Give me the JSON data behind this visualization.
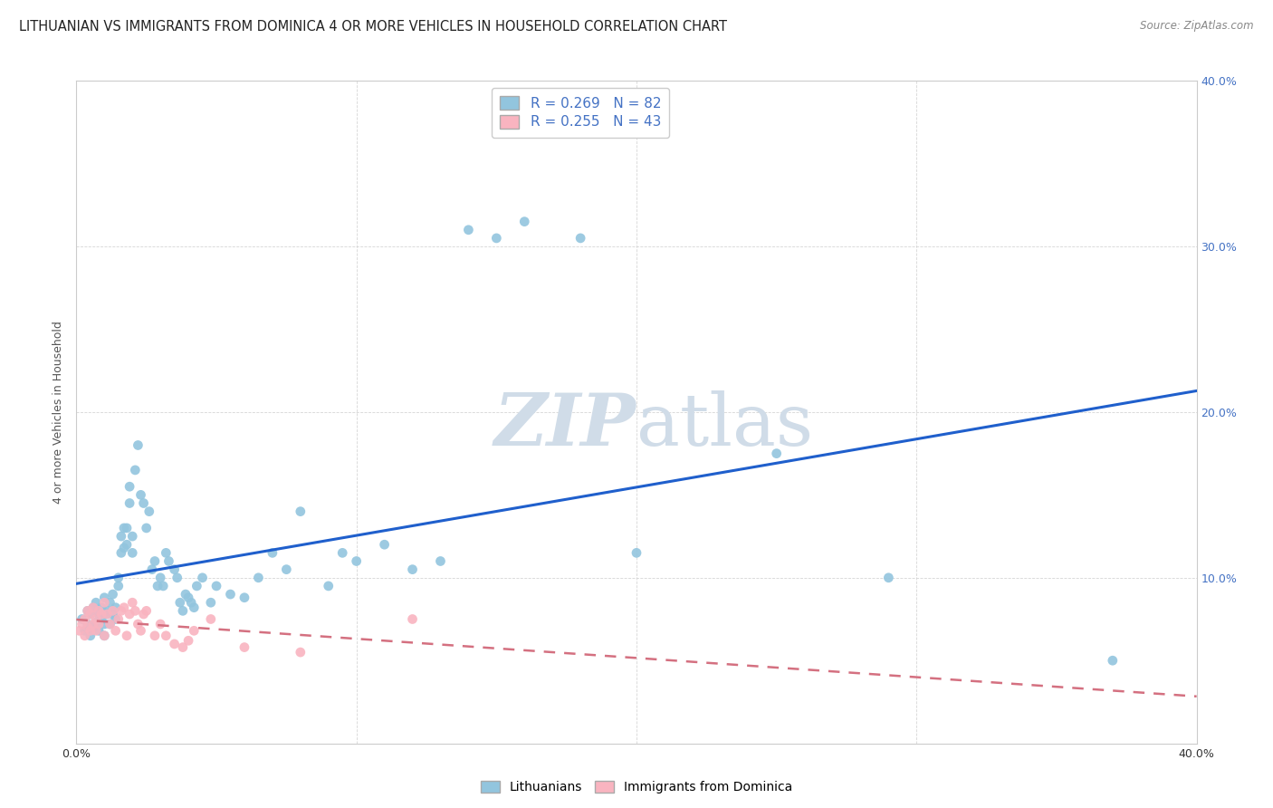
{
  "title": "LITHUANIAN VS IMMIGRANTS FROM DOMINICA 4 OR MORE VEHICLES IN HOUSEHOLD CORRELATION CHART",
  "source": "Source: ZipAtlas.com",
  "ylabel": "4 or more Vehicles in Household",
  "xlim": [
    0.0,
    0.4
  ],
  "ylim": [
    0.0,
    0.4
  ],
  "xticks": [
    0.0,
    0.1,
    0.2,
    0.3,
    0.4
  ],
  "yticks": [
    0.0,
    0.1,
    0.2,
    0.3,
    0.4
  ],
  "xtick_labels_bottom": [
    "0.0%",
    "",
    "",
    "",
    "40.0%"
  ],
  "ytick_labels_right": [
    "",
    "10.0%",
    "20.0%",
    "30.0%",
    "40.0%"
  ],
  "legend_label1": "Lithuanians",
  "legend_label2": "Immigrants from Dominica",
  "R1": 0.269,
  "N1": 82,
  "R2": 0.255,
  "N2": 43,
  "color1": "#92c5de",
  "color2": "#f9b4c0",
  "line_color1": "#1f5fcc",
  "line_color2": "#d47080",
  "tick_color": "#4472c4",
  "watermark_color": "#d0dce8",
  "title_fontsize": 10.5,
  "axis_label_fontsize": 9,
  "tick_fontsize": 9,
  "legend_fontsize": 11,
  "scatter1_x": [
    0.002,
    0.003,
    0.004,
    0.004,
    0.005,
    0.005,
    0.006,
    0.006,
    0.007,
    0.007,
    0.008,
    0.008,
    0.009,
    0.009,
    0.01,
    0.01,
    0.01,
    0.011,
    0.011,
    0.012,
    0.012,
    0.013,
    0.013,
    0.014,
    0.014,
    0.015,
    0.015,
    0.016,
    0.016,
    0.017,
    0.017,
    0.018,
    0.018,
    0.019,
    0.019,
    0.02,
    0.02,
    0.021,
    0.022,
    0.023,
    0.024,
    0.025,
    0.026,
    0.027,
    0.028,
    0.029,
    0.03,
    0.031,
    0.032,
    0.033,
    0.035,
    0.036,
    0.037,
    0.038,
    0.039,
    0.04,
    0.041,
    0.042,
    0.043,
    0.045,
    0.048,
    0.05,
    0.055,
    0.06,
    0.065,
    0.07,
    0.075,
    0.08,
    0.09,
    0.095,
    0.1,
    0.11,
    0.12,
    0.13,
    0.14,
    0.15,
    0.16,
    0.18,
    0.2,
    0.25,
    0.29,
    0.37
  ],
  "scatter1_y": [
    0.075,
    0.068,
    0.08,
    0.072,
    0.078,
    0.065,
    0.082,
    0.07,
    0.085,
    0.073,
    0.078,
    0.068,
    0.075,
    0.082,
    0.088,
    0.072,
    0.065,
    0.08,
    0.078,
    0.085,
    0.072,
    0.09,
    0.078,
    0.082,
    0.075,
    0.095,
    0.1,
    0.115,
    0.125,
    0.13,
    0.118,
    0.12,
    0.13,
    0.145,
    0.155,
    0.125,
    0.115,
    0.165,
    0.18,
    0.15,
    0.145,
    0.13,
    0.14,
    0.105,
    0.11,
    0.095,
    0.1,
    0.095,
    0.115,
    0.11,
    0.105,
    0.1,
    0.085,
    0.08,
    0.09,
    0.088,
    0.085,
    0.082,
    0.095,
    0.1,
    0.085,
    0.095,
    0.09,
    0.088,
    0.1,
    0.115,
    0.105,
    0.14,
    0.095,
    0.115,
    0.11,
    0.12,
    0.105,
    0.11,
    0.31,
    0.305,
    0.315,
    0.305,
    0.115,
    0.175,
    0.1,
    0.05
  ],
  "scatter2_x": [
    0.001,
    0.002,
    0.003,
    0.003,
    0.004,
    0.004,
    0.005,
    0.005,
    0.006,
    0.006,
    0.007,
    0.007,
    0.008,
    0.008,
    0.009,
    0.01,
    0.01,
    0.011,
    0.012,
    0.013,
    0.014,
    0.015,
    0.016,
    0.017,
    0.018,
    0.019,
    0.02,
    0.021,
    0.022,
    0.023,
    0.024,
    0.025,
    0.028,
    0.03,
    0.032,
    0.035,
    0.038,
    0.04,
    0.042,
    0.048,
    0.06,
    0.08,
    0.12
  ],
  "scatter2_y": [
    0.068,
    0.072,
    0.065,
    0.075,
    0.07,
    0.08,
    0.068,
    0.078,
    0.072,
    0.082,
    0.075,
    0.068,
    0.08,
    0.072,
    0.078,
    0.065,
    0.085,
    0.078,
    0.072,
    0.08,
    0.068,
    0.075,
    0.08,
    0.082,
    0.065,
    0.078,
    0.085,
    0.08,
    0.072,
    0.068,
    0.078,
    0.08,
    0.065,
    0.072,
    0.065,
    0.06,
    0.058,
    0.062,
    0.068,
    0.075,
    0.058,
    0.055,
    0.075
  ]
}
